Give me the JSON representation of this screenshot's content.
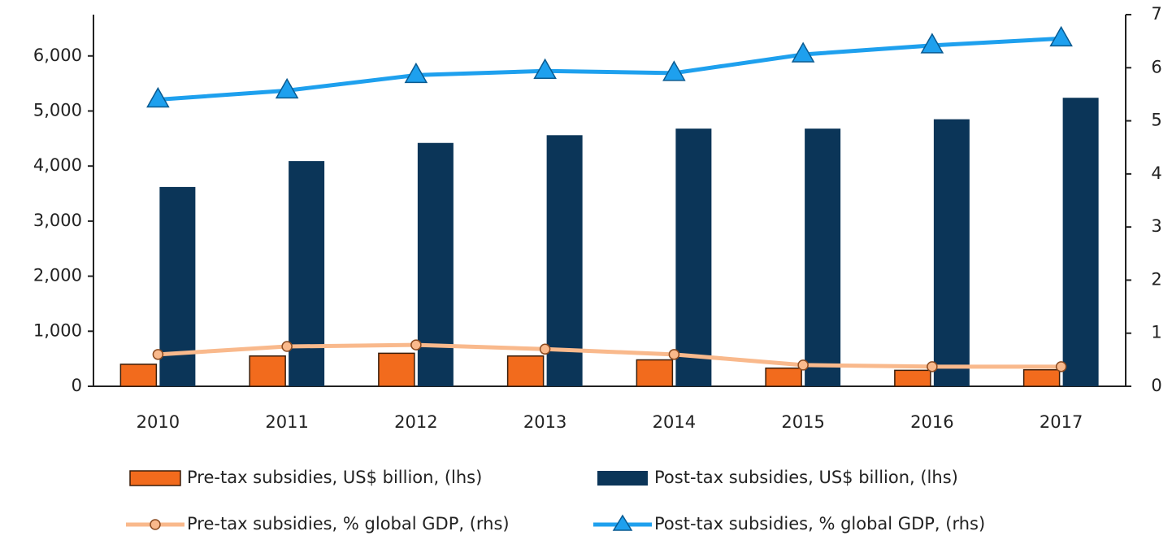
{
  "chart_data": {
    "type": "bar",
    "categories": [
      "2010",
      "2011",
      "2012",
      "2013",
      "2014",
      "2015",
      "2016",
      "2017"
    ],
    "series": [
      {
        "name": "Pre-tax subsidies, US$ billion, (lhs)",
        "color": "#f26b1d",
        "type": "bar",
        "values": [
          400,
          550,
          600,
          550,
          480,
          330,
          290,
          300
        ]
      },
      {
        "name": "Post-tax subsidies, US$ billion, (lhs)",
        "color": "#0b3558",
        "type": "bar",
        "values": [
          3620,
          4090,
          4420,
          4560,
          4680,
          4680,
          4850,
          5240
        ]
      },
      {
        "name": "Pre-tax subsidies, % global GDP, (rhs)",
        "color": "#f9b98c",
        "type": "line",
        "marker": "circle",
        "axis": "y2",
        "values": [
          0.6,
          0.75,
          0.78,
          0.7,
          0.6,
          0.4,
          0.37,
          0.37
        ]
      },
      {
        "name": "Post-tax subsidies, % global GDP, (rhs)",
        "color": "#1ea0ee",
        "type": "line",
        "marker": "triangle",
        "axis": "y2",
        "values": [
          5.4,
          5.57,
          5.86,
          5.94,
          5.9,
          6.25,
          6.42,
          6.55
        ]
      }
    ],
    "ylim": [
      0,
      6750
    ],
    "yticks": [
      0,
      {
        "value": 1000,
        "label": "1,000"
      },
      {
        "value": 2000,
        "label": "2,000"
      },
      {
        "value": 3000,
        "label": "3,000"
      },
      {
        "value": 4000,
        "label": "4,000"
      },
      {
        "value": 5000,
        "label": "5,000"
      },
      {
        "value": 6000,
        "label": "6,000"
      }
    ],
    "y2lim": [
      0,
      7
    ],
    "y2ticks": [
      0,
      1,
      2,
      3,
      4,
      5,
      6,
      7
    ]
  }
}
